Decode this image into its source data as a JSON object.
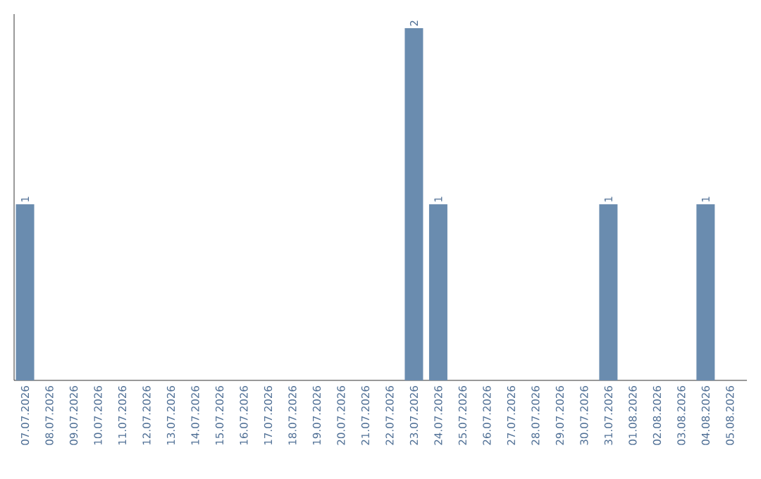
{
  "chart_data": {
    "type": "bar",
    "categories": [
      "07.07.2026",
      "08.07.2026",
      "09.07.2026",
      "10.07.2026",
      "11.07.2026",
      "12.07.2026",
      "13.07.2026",
      "14.07.2026",
      "15.07.2026",
      "16.07.2026",
      "17.07.2026",
      "18.07.2026",
      "19.07.2026",
      "20.07.2026",
      "21.07.2026",
      "22.07.2026",
      "23.07.2026",
      "24.07.2026",
      "25.07.2026",
      "26.07.2026",
      "27.07.2026",
      "28.07.2026",
      "29.07.2026",
      "30.07.2026",
      "31.07.2026",
      "01.08.2026",
      "02.08.2026",
      "03.08.2026",
      "04.08.2026",
      "05.08.2026"
    ],
    "values": [
      1,
      0,
      0,
      0,
      0,
      0,
      0,
      0,
      0,
      0,
      0,
      0,
      0,
      0,
      0,
      0,
      2,
      1,
      0,
      0,
      0,
      0,
      0,
      0,
      1,
      0,
      0,
      0,
      1,
      0
    ],
    "color": "#6a8caf",
    "value_labels": [
      "1",
      null,
      null,
      null,
      null,
      null,
      null,
      null,
      null,
      null,
      null,
      null,
      null,
      null,
      null,
      null,
      "2",
      "1",
      null,
      null,
      null,
      null,
      null,
      null,
      "1",
      null,
      null,
      null,
      "1",
      null
    ]
  }
}
